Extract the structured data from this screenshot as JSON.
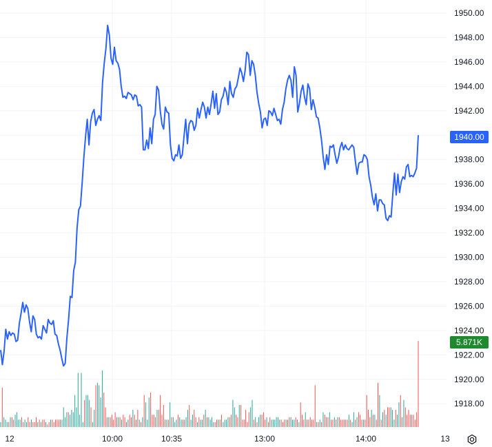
{
  "colors": {
    "line": "#2962ff",
    "price_badge": "#2962ff",
    "volume_badge": "#1e8a2e",
    "volume_up": "#26a69a",
    "volume_down": "#ef5350",
    "grid": "#f0f3fa",
    "axis_text": "#131722"
  },
  "chart_data": {
    "type": "line",
    "title": "",
    "xlabel": "",
    "ylabel": "",
    "ylim": [
      1916.0,
      1951.0
    ],
    "y_ticks": [
      "1950.00",
      "1948.00",
      "1946.00",
      "1944.00",
      "1942.00",
      "1940.00",
      "1938.00",
      "1936.00",
      "1934.00",
      "1932.00",
      "1930.00",
      "1928.00",
      "1926.00",
      "1924.00",
      "1922.00",
      "1920.00",
      "1918.00"
    ],
    "x_ticks": [
      "12",
      "10:00",
      "10:35",
      "13:00",
      "14:00",
      "13"
    ],
    "last_price": "1940.00",
    "last_volume": "5.871K",
    "grid": true,
    "series": [
      {
        "values": [
          1922.4,
          1921.2,
          1922.3,
          1924.1,
          1923.3,
          1923.9,
          1923.6,
          1923.8,
          1923.7,
          1923.1,
          1923.2,
          1924.6,
          1925.4,
          1926.3,
          1925.5,
          1926.1,
          1925.8,
          1924.7,
          1923.9,
          1925.2,
          1924.9,
          1923.7,
          1923.4,
          1923.5,
          1923.3,
          1924.4,
          1924.1,
          1923.8,
          1924.9,
          1924.6,
          1924.5,
          1924.8,
          1923.7,
          1923.6,
          1922.9,
          1922.4,
          1921.7,
          1921.1,
          1921.3,
          1923.4,
          1924.9,
          1926.8,
          1926.7,
          1928.9,
          1929.6,
          1932.4,
          1933.9,
          1934.2,
          1936.1,
          1938.2,
          1939.9,
          1941.3,
          1939.2,
          1941.1,
          1941.8,
          1942.1,
          1940.8,
          1941.3,
          1941.6,
          1941.2,
          1944.3,
          1945.9,
          1947.1,
          1949.0,
          1948.2,
          1946.3,
          1945.8,
          1947.2,
          1946.1,
          1945.9,
          1945.4,
          1944.0,
          1943.1,
          1943.2,
          1943.0,
          1943.5,
          1943.4,
          1943.3,
          1942.9,
          1943.3,
          1943.2,
          1942.4,
          1942.5,
          1942.3,
          1938.8,
          1938.8,
          1939.6,
          1938.9,
          1940.6,
          1939.3,
          1941.3,
          1941.7,
          1944.0,
          1943.7,
          1942.0,
          1940.9,
          1940.5,
          1942.3,
          1941.9,
          1941.8,
          1939.2,
          1938.1,
          1937.9,
          1938.4,
          1938.3,
          1939.2,
          1938.1,
          1938.4,
          1939.9,
          1941.3,
          1939.3,
          1940.9,
          1941.2,
          1941.1,
          1940.4,
          1940.8,
          1942.2,
          1941.4,
          1942.1,
          1942.7,
          1942.3,
          1941.4,
          1942.3,
          1941.7,
          1942.6,
          1943.6,
          1942.2,
          1943.4,
          1941.7,
          1941.9,
          1942.9,
          1943.2,
          1943.9,
          1943.5,
          1942.5,
          1944.4,
          1943.4,
          1943.1,
          1943.8,
          1944.0,
          1944.7,
          1945.5,
          1945.1,
          1944.4,
          1945.3,
          1946.8,
          1946.6,
          1944.9,
          1946.1,
          1945.8,
          1944.9,
          1943.5,
          1942.6,
          1941.9,
          1940.6,
          1941.3,
          1941.4,
          1940.8,
          1942.0,
          1941.9,
          1941.6,
          1942.2,
          1941.7,
          1941.2,
          1941.3,
          1940.9,
          1942.1,
          1942.7,
          1943.8,
          1944.5,
          1944.9,
          1944.5,
          1943.1,
          1945.6,
          1944.9,
          1941.9,
          1942.6,
          1943.6,
          1944.1,
          1943.1,
          1942.5,
          1944.2,
          1943.8,
          1942.1,
          1942.9,
          1942.3,
          1941.5,
          1941.4,
          1940.6,
          1939.6,
          1938.2,
          1937.2,
          1938.4,
          1937.6,
          1939.1,
          1939.0,
          1939.2,
          1938.4,
          1937.7,
          1938.2,
          1939.0,
          1939.4,
          1938.8,
          1939.2,
          1938.9,
          1938.8,
          1939.0,
          1939.2,
          1939.0,
          1937.8,
          1936.8,
          1937.7,
          1937.8,
          1937.8,
          1938.4,
          1938.3,
          1938.0,
          1936.6,
          1935.9,
          1934.9,
          1934.3,
          1935.2,
          1933.8,
          1934.7,
          1934.7,
          1934.4,
          1934.3,
          1933.2,
          1933.0,
          1933.4,
          1933.3,
          1935.2,
          1936.9,
          1935.1,
          1936.8,
          1935.3,
          1936.2,
          1936.6,
          1936.4,
          1937.4,
          1937.6,
          1936.6,
          1936.7,
          1936.6,
          1936.9,
          1937.3,
          1940.0
        ]
      }
    ],
    "volume": [
      2,
      16,
      4,
      3,
      2,
      2,
      4,
      4,
      3,
      5,
      6,
      3,
      3,
      4,
      2,
      3,
      2,
      4,
      2,
      3,
      2,
      2,
      4,
      2,
      3,
      2,
      3,
      3,
      2,
      1,
      2,
      3,
      3,
      2,
      3,
      3,
      3,
      3,
      3,
      8,
      4,
      6,
      6,
      5,
      7,
      6,
      13,
      8,
      22,
      5,
      22,
      2,
      11,
      13,
      13,
      11,
      8,
      2,
      7,
      17,
      18,
      17,
      12,
      23,
      14,
      8,
      4,
      4,
      4,
      5,
      3,
      6,
      4,
      4,
      4,
      3,
      5,
      4,
      2,
      3,
      5,
      4,
      7,
      5,
      3,
      7,
      3,
      2,
      4,
      13,
      10,
      3,
      12,
      14,
      5,
      5,
      4,
      7,
      7,
      13,
      5,
      9,
      3,
      3,
      3,
      10,
      4,
      4,
      2,
      3,
      5,
      4,
      3,
      3,
      3,
      4,
      7,
      9,
      3,
      5,
      7,
      4,
      2,
      4,
      3,
      3,
      5,
      7,
      4,
      4,
      3,
      4,
      2,
      2,
      3,
      3,
      3,
      5,
      2,
      3,
      3,
      4,
      4,
      5,
      11,
      8,
      5,
      4,
      9,
      9,
      3,
      3,
      7,
      2,
      6,
      8,
      11,
      3,
      4,
      2,
      4,
      5,
      5,
      6,
      3,
      4,
      2,
      4,
      3,
      3,
      3,
      4,
      4,
      3,
      3,
      2,
      3,
      3,
      3,
      4,
      4,
      3,
      3,
      4,
      3,
      2,
      10,
      5,
      3,
      6,
      3,
      3,
      4,
      3,
      3,
      17,
      2,
      2,
      3,
      2,
      6,
      5,
      4,
      4,
      6,
      3,
      3,
      4,
      3,
      4,
      4,
      3,
      3,
      3,
      3,
      3,
      5,
      3,
      2,
      6,
      3,
      4,
      6,
      5,
      3,
      3,
      3,
      13,
      7,
      4,
      7,
      5,
      5,
      3,
      18,
      13,
      3,
      6,
      7,
      5,
      8,
      8,
      8,
      7,
      3,
      7,
      5,
      10,
      13,
      4,
      11,
      8,
      5,
      7,
      5,
      5,
      5,
      3,
      6,
      35
    ],
    "volume_direction": "up,down,up,up,up,down,up,down,down,up,up,up,up,down,down,up,up,down,down,up,down,down,down,up,down,up,down,down,up,down,down,up,down,down,down,down,down,down,up,up,up,up,down,up,up,up,up,up,up,up,up,up,down,up,up,up,down,up,up,down,up,up,up,up,down,down,down,up,down,down,down,down,down,up,down,up,down,down,down,up,down,down,up,down,down,down,up,down,up,down,up,up,up,down,down,down,down,up,down,down,down,down,down,up,down,up,down,up,up,up,down,up,up,down,down,up,up,down,up,up,down,down,up,down,up,up,down,up,down,up,up,up,up,down,down,up,down,down,up,up,up,up,down,down,up,up,down,down,up,down,down,down,down,down,down,up,up,down,up,down,up,up,down,down,down,up,down,down,up,up,up,up,up,up,down,down,down,up,down,down,up,up,up,down,down,up,down,down,down,up,down,down,down,down,down,down,up,down,up,down,up,down,down,down,up,down,down,up,down,up,down,down,down,down,down,down,up,down,up,up,down,up,down,down,down,up,down,down,down,down,up,down,up,down,down,up,down,up,down,up,down,down,up,up,up,down,up,up,down,down,up"
  }
}
